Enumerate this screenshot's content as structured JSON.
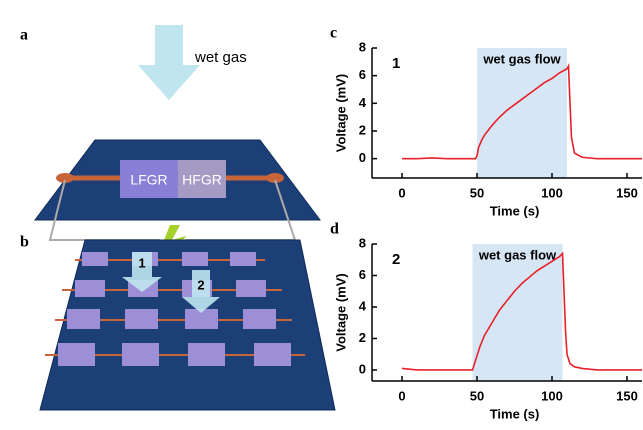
{
  "schematic_a": {
    "label": "a",
    "arrow_label": "wet gas",
    "left_region": "LFGR",
    "right_region": "HFGR"
  },
  "schematic_b": {
    "label": "b",
    "arrows": [
      "1",
      "2"
    ]
  },
  "chart_data": [
    {
      "type": "line",
      "panel_label": "c",
      "inset_label": "1",
      "annotation": "wet gas flow",
      "shaded_x": [
        50,
        110
      ],
      "xlabel": "Time (s)",
      "ylabel": "Voltage (mV)",
      "xlim": [
        -20,
        160
      ],
      "ylim": [
        -1.4,
        8
      ],
      "xticks": [
        0,
        50,
        100,
        150
      ],
      "yticks": [
        0,
        2,
        4,
        6,
        8
      ],
      "x": [
        0,
        10,
        20,
        30,
        40,
        49,
        50,
        51,
        53,
        55,
        60,
        65,
        70,
        75,
        80,
        85,
        90,
        95,
        100,
        105,
        110,
        111,
        112,
        113,
        115,
        120,
        130,
        140,
        150,
        160
      ],
      "series": [
        {
          "name": "1",
          "color": "#e8202a",
          "values": [
            0,
            0,
            0.05,
            0,
            0,
            0,
            0.2,
            0.8,
            1.3,
            1.7,
            2.4,
            3.0,
            3.5,
            3.9,
            4.3,
            4.7,
            5.1,
            5.5,
            5.8,
            6.2,
            6.5,
            6.7,
            4,
            1.5,
            0.4,
            0.1,
            0,
            0,
            0,
            0
          ]
        }
      ]
    },
    {
      "type": "line",
      "panel_label": "d",
      "inset_label": "2",
      "annotation": "wet gas flow",
      "shaded_x": [
        47,
        107
      ],
      "xlabel": "Time (s)",
      "ylabel": "Voltage (mV)",
      "xlim": [
        -20,
        160
      ],
      "ylim": [
        -0.7,
        8
      ],
      "xticks": [
        0,
        50,
        100,
        150
      ],
      "yticks": [
        0,
        2,
        4,
        6,
        8
      ],
      "x": [
        0,
        10,
        20,
        30,
        40,
        47,
        48,
        50,
        52,
        55,
        60,
        65,
        70,
        75,
        80,
        85,
        90,
        95,
        100,
        105,
        107,
        108,
        109,
        110,
        112,
        115,
        120,
        130,
        140,
        150,
        160
      ],
      "series": [
        {
          "name": "2",
          "color": "#e8202a",
          "values": [
            0.1,
            0,
            0,
            0,
            0,
            0,
            0.3,
            0.9,
            1.5,
            2.2,
            3.0,
            3.8,
            4.4,
            5.0,
            5.5,
            5.9,
            6.3,
            6.6,
            6.9,
            7.2,
            7.4,
            5,
            2.5,
            1,
            0.4,
            0.2,
            0.1,
            0,
            0,
            0,
            0
          ]
        }
      ]
    }
  ]
}
